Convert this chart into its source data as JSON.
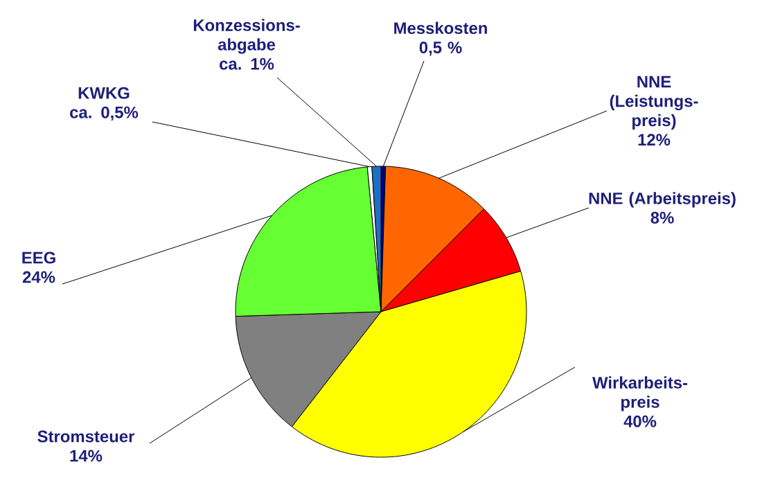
{
  "chart_data": {
    "type": "pie",
    "categories": [
      "Messkosten",
      "NNE (Leistungs-preis)",
      "NNE (Arbeitspreis)",
      "Wirkarbeits-preis",
      "Stromsteuer",
      "EEG",
      "KWKG",
      "Konzessions-abgabe"
    ],
    "values": [
      0.5,
      12,
      8,
      40,
      14,
      24,
      0.5,
      1
    ],
    "value_labels": [
      "0,5 %",
      "12%",
      "8%",
      "40%",
      "14%",
      "24%",
      "ca. 0,5%",
      "ca. 1%"
    ],
    "colors": [
      "#000080",
      "#ff6600",
      "#ff0000",
      "#ffff00",
      "#808080",
      "#66ff33",
      "#ffffff",
      "#1f6fc5"
    ]
  }
}
